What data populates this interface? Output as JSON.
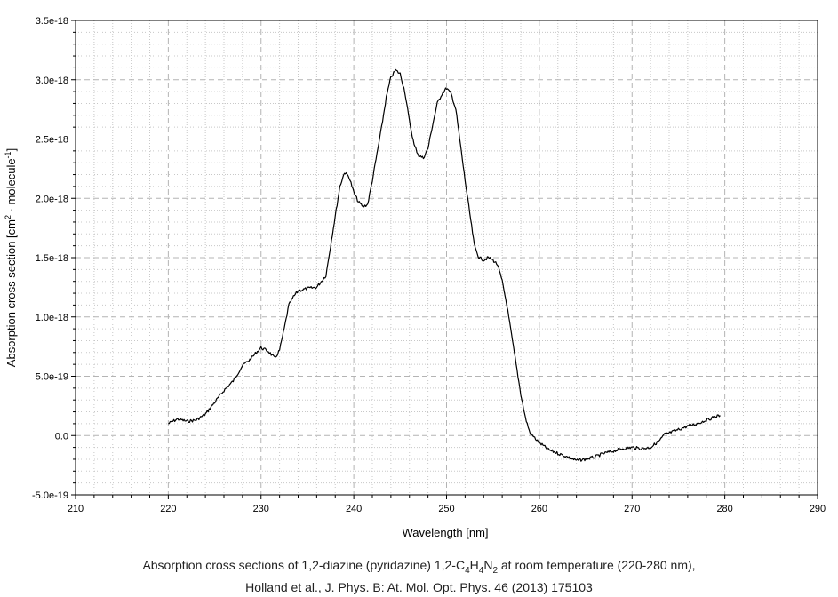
{
  "chart_data": {
    "type": "line",
    "xlabel": "Wavelength [nm]",
    "ylabel_main": "Absorption cross section [cm",
    "ylabel_sup1": "2",
    "ylabel_mid": " · molecule",
    "ylabel_sup2": "-1",
    "ylabel_end": "]",
    "xlim": [
      210,
      290
    ],
    "ylim": [
      -5e-19,
      3.5e-18
    ],
    "xticks": [
      210,
      220,
      230,
      240,
      250,
      260,
      270,
      280,
      290
    ],
    "xtick_labels": [
      "210",
      "220",
      "230",
      "240",
      "250",
      "260",
      "270",
      "280",
      "290"
    ],
    "yticks": [
      -5e-19,
      0,
      5e-19,
      1e-18,
      1.5e-18,
      2e-18,
      2.5e-18,
      3e-18,
      3.5e-18
    ],
    "ytick_labels": [
      "-5.0e-19",
      "0.0",
      "5.0e-19",
      "1.0e-18",
      "1.5e-18",
      "2.0e-18",
      "2.5e-18",
      "3.0e-18",
      "3.5e-18"
    ],
    "grid": true,
    "series": [
      {
        "color": "#000000",
        "x": [
          220.0,
          221.0,
          222.0,
          223.0,
          224.0,
          225.0,
          226.0,
          227.0,
          228.0,
          228.8,
          229.5,
          230.0,
          230.8,
          231.5,
          232.0,
          232.5,
          233.0,
          233.5,
          234.0,
          235.0,
          236.0,
          237.0,
          238.0,
          238.5,
          239.0,
          239.5,
          240.0,
          240.5,
          241.0,
          241.5,
          242.0,
          243.0,
          243.5,
          244.0,
          244.5,
          245.0,
          245.5,
          246.0,
          246.5,
          247.0,
          247.5,
          248.0,
          248.5,
          249.0,
          249.5,
          250.0,
          250.5,
          251.0,
          252.0,
          253.0,
          253.5,
          254.0,
          254.5,
          255.0,
          255.5,
          256.0,
          256.5,
          257.0,
          257.5,
          258.0,
          258.5,
          259.0,
          259.5,
          260.0,
          261.0,
          262.0,
          263.0,
          264.0,
          265.0,
          266.0,
          267.0,
          268.0,
          269.0,
          270.0,
          271.0,
          272.0,
          273.0,
          273.5,
          274.0,
          275.0,
          276.0,
          277.0,
          278.0,
          279.0,
          279.5
        ],
        "y": [
          1e-19,
          1.4e-19,
          1.2e-19,
          1.3e-19,
          1.8e-19,
          2.8e-19,
          3.8e-19,
          4.6e-19,
          5.9e-19,
          6.4e-19,
          7e-19,
          7.4e-19,
          7.1e-19,
          6.5e-19,
          7.2e-19,
          9e-19,
          1.1e-18,
          1.17e-18,
          1.22e-18,
          1.24e-18,
          1.25e-18,
          1.35e-18,
          1.85e-18,
          2.1e-18,
          2.22e-18,
          2.18e-18,
          2.05e-18,
          1.97e-18,
          1.93e-18,
          1.95e-18,
          2.15e-18,
          2.6e-18,
          2.85e-18,
          3.02e-18,
          3.08e-18,
          3.05e-18,
          2.9e-18,
          2.65e-18,
          2.45e-18,
          2.36e-18,
          2.34e-18,
          2.42e-18,
          2.62e-18,
          2.8e-18,
          2.88e-18,
          2.93e-18,
          2.88e-18,
          2.75e-18,
          2.15e-18,
          1.6e-18,
          1.5e-18,
          1.48e-18,
          1.5e-18,
          1.48e-18,
          1.44e-18,
          1.3e-18,
          1.1e-18,
          8.5e-19,
          6e-19,
          3.5e-19,
          1.5e-19,
          2e-20,
          -2e-20,
          -6e-20,
          -1.2e-19,
          -1.5e-19,
          -1.8e-19,
          -2.1e-19,
          -2e-19,
          -1.8e-19,
          -1.5e-19,
          -1.3e-19,
          -1.1e-19,
          -1e-19,
          -1.1e-19,
          -1e-19,
          -4e-20,
          1e-20,
          2e-20,
          5e-20,
          8e-20,
          1e-19,
          1.3e-19,
          1.6e-19,
          1.7e-19
        ]
      }
    ]
  },
  "caption": {
    "line1_pre": "Absorption cross sections of 1,2-diazine (pyridazine) 1,2-C",
    "line1_sub1": "4",
    "line1_mid1": "H",
    "line1_sub2": "4",
    "line1_mid2": "N",
    "line1_sub3": "2",
    "line1_post": " at room temperature (220-280 nm),",
    "line2": "Holland et al., J. Phys. B: At. Mol. Opt. Phys. 46 (2013) 175103"
  }
}
